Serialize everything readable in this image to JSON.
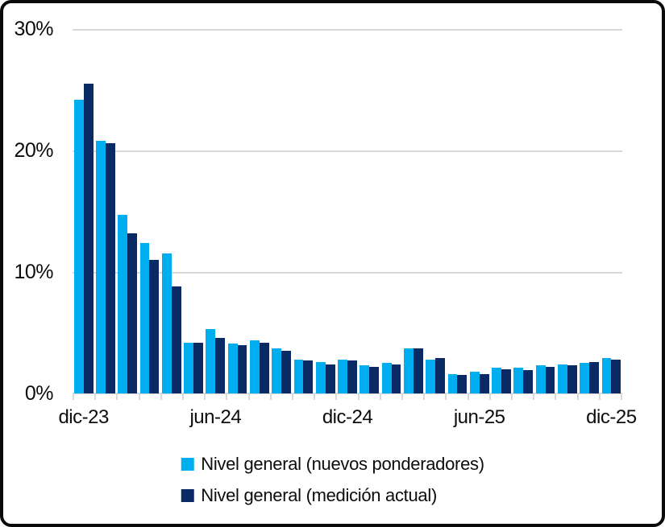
{
  "colors": {
    "background": "#FFFFFF",
    "frame_border": "#0A0A0A",
    "gridline": "#D9D9D9",
    "axis": "#D9D9D9",
    "text": "#0C0C0C",
    "series_nuevos_ponderadores": "#00AEEF",
    "series_medicion_actual": "#0A2A66"
  },
  "y_axis": {
    "tick_labels": [
      "30%",
      "20%",
      "10%",
      "0%"
    ],
    "tick_values": [
      30,
      20,
      10,
      0
    ]
  },
  "x_axis": {
    "visible_ticks": [
      {
        "label": "dic-23",
        "month_index": 0
      },
      {
        "label": "jun-24",
        "month_index": 6
      },
      {
        "label": "dic-24",
        "month_index": 12
      },
      {
        "label": "jun-25",
        "month_index": 18
      },
      {
        "label": "dic-25",
        "month_index": 24
      }
    ]
  },
  "legend": {
    "items": [
      {
        "label": "Nivel general (nuevos ponderadores)",
        "color_key": "series_nuevos_ponderadores"
      },
      {
        "label": "Nivel general (medición actual)",
        "color_key": "series_medicion_actual"
      }
    ]
  },
  "chart_data": {
    "type": "bar",
    "title": "",
    "xlabel": "",
    "ylabel": "",
    "ylim": [
      0,
      30
    ],
    "grid": true,
    "legend_position": "bottom",
    "categories": [
      "dic-23",
      "ene-24",
      "feb-24",
      "mar-24",
      "abr-24",
      "may-24",
      "jun-24",
      "jul-24",
      "ago-24",
      "sep-24",
      "oct-24",
      "nov-24",
      "dic-24",
      "ene-25",
      "feb-25",
      "mar-25",
      "abr-25",
      "may-25",
      "jun-25",
      "jul-25",
      "ago-25",
      "sep-25",
      "oct-25",
      "nov-25",
      "dic-25"
    ],
    "series": [
      {
        "name": "Nivel general (nuevos ponderadores)",
        "color_key": "series_nuevos_ponderadores",
        "values": [
          24.2,
          20.8,
          14.7,
          12.4,
          11.5,
          4.2,
          5.3,
          4.1,
          4.4,
          3.7,
          2.8,
          2.6,
          2.8,
          2.3,
          2.5,
          3.7,
          2.8,
          1.6,
          1.8,
          2.1,
          2.1,
          2.3,
          2.4,
          2.5,
          2.9
        ]
      },
      {
        "name": "Nivel general (medición actual)",
        "color_key": "series_medicion_actual",
        "values": [
          25.5,
          20.6,
          13.2,
          11.0,
          8.8,
          4.2,
          4.6,
          4.0,
          4.2,
          3.5,
          2.7,
          2.4,
          2.7,
          2.2,
          2.4,
          3.7,
          2.9,
          1.5,
          1.6,
          2.0,
          1.9,
          2.2,
          2.3,
          2.6,
          2.8
        ]
      }
    ]
  }
}
